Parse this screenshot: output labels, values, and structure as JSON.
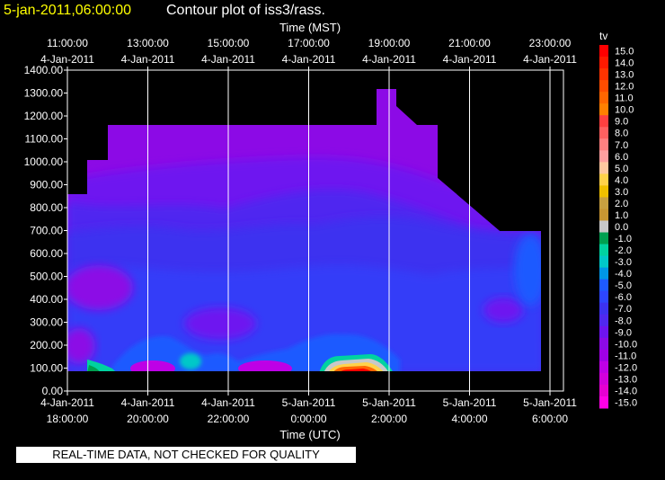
{
  "header": {
    "timestamp": "5-jan-2011,06:00:00",
    "title": "Contour plot of iss3/rass."
  },
  "notice": "REAL-TIME DATA, NOT CHECKED FOR QUALITY",
  "colors": {
    "timestamp": "#ffff00",
    "text": "#ffffff",
    "background": "#000000",
    "grid": "#ffffff"
  },
  "chart_data": {
    "type": "heatmap",
    "title": "Contour plot of iss3/rass.",
    "top_axis": {
      "label": "Time (MST)",
      "ticks": [
        {
          "time": "11:00:00",
          "date": "4-Jan-2011"
        },
        {
          "time": "13:00:00",
          "date": "4-Jan-2011"
        },
        {
          "time": "15:00:00",
          "date": "4-Jan-2011"
        },
        {
          "time": "17:00:00",
          "date": "4-Jan-2011"
        },
        {
          "time": "19:00:00",
          "date": "4-Jan-2011"
        },
        {
          "time": "21:00:00",
          "date": "4-Jan-2011"
        },
        {
          "time": "23:00:00",
          "date": "4-Jan-2011"
        }
      ]
    },
    "bottom_axis": {
      "label": "Time (UTC)",
      "ticks": [
        {
          "date": "4-Jan-2011",
          "time": "18:00:00"
        },
        {
          "date": "4-Jan-2011",
          "time": "20:00:00"
        },
        {
          "date": "4-Jan-2011",
          "time": "22:00:00"
        },
        {
          "date": "5-Jan-2011",
          "time": "0:00:00"
        },
        {
          "date": "5-Jan-2011",
          "time": "2:00:00"
        },
        {
          "date": "5-Jan-2011",
          "time": "4:00:00"
        },
        {
          "date": "5-Jan-2011",
          "time": "6:00:00"
        }
      ]
    },
    "y_axis": {
      "ylim": [
        0,
        1400
      ],
      "ticks": [
        "0.00",
        "100.00",
        "200.00",
        "300.00",
        "400.00",
        "500.00",
        "600.00",
        "700.00",
        "800.00",
        "900.00",
        "1000.00",
        "1100.00",
        "1200.00",
        "1300.00",
        "1400.00"
      ]
    },
    "grid": true,
    "colorbar": {
      "label": "tv",
      "levels": [
        {
          "label": "15.0",
          "color": "#ff0000"
        },
        {
          "label": "14.0",
          "color": "#ff1a00"
        },
        {
          "label": "13.0",
          "color": "#ff3300"
        },
        {
          "label": "12.0",
          "color": "#ff4d00"
        },
        {
          "label": "11.0",
          "color": "#ff6600"
        },
        {
          "label": "10.0",
          "color": "#ff8000"
        },
        {
          "label": "9.0",
          "color": "#ff4040"
        },
        {
          "label": "8.0",
          "color": "#ff6060"
        },
        {
          "label": "7.0",
          "color": "#ff8080"
        },
        {
          "label": "6.0",
          "color": "#ffa0a0"
        },
        {
          "label": "5.0",
          "color": "#ffc8a0"
        },
        {
          "label": "4.0",
          "color": "#ffd24a"
        },
        {
          "label": "3.0",
          "color": "#f0c000"
        },
        {
          "label": "2.0",
          "color": "#c8a040"
        },
        {
          "label": "1.0",
          "color": "#c89632"
        },
        {
          "label": "0.0",
          "color": "#c8c8c8"
        },
        {
          "label": "-1.0",
          "color": "#00a050"
        },
        {
          "label": "-2.0",
          "color": "#00d2a0"
        },
        {
          "label": "-3.0",
          "color": "#00c8c8"
        },
        {
          "label": "-4.0",
          "color": "#0096e6"
        },
        {
          "label": "-5.0",
          "color": "#1e5aff"
        },
        {
          "label": "-6.0",
          "color": "#2d46ff"
        },
        {
          "label": "-7.0",
          "color": "#3c32f0"
        },
        {
          "label": "-8.0",
          "color": "#5028f0"
        },
        {
          "label": "-9.0",
          "color": "#6e14f0"
        },
        {
          "label": "-10.0",
          "color": "#8c0ae6"
        },
        {
          "label": "-11.0",
          "color": "#a000e6"
        },
        {
          "label": "-12.0",
          "color": "#be00e6"
        },
        {
          "label": "-13.0",
          "color": "#d200dc"
        },
        {
          "label": "-14.0",
          "color": "#e600d2"
        },
        {
          "label": "-15.0",
          "color": "#ff00e6"
        }
      ]
    }
  }
}
